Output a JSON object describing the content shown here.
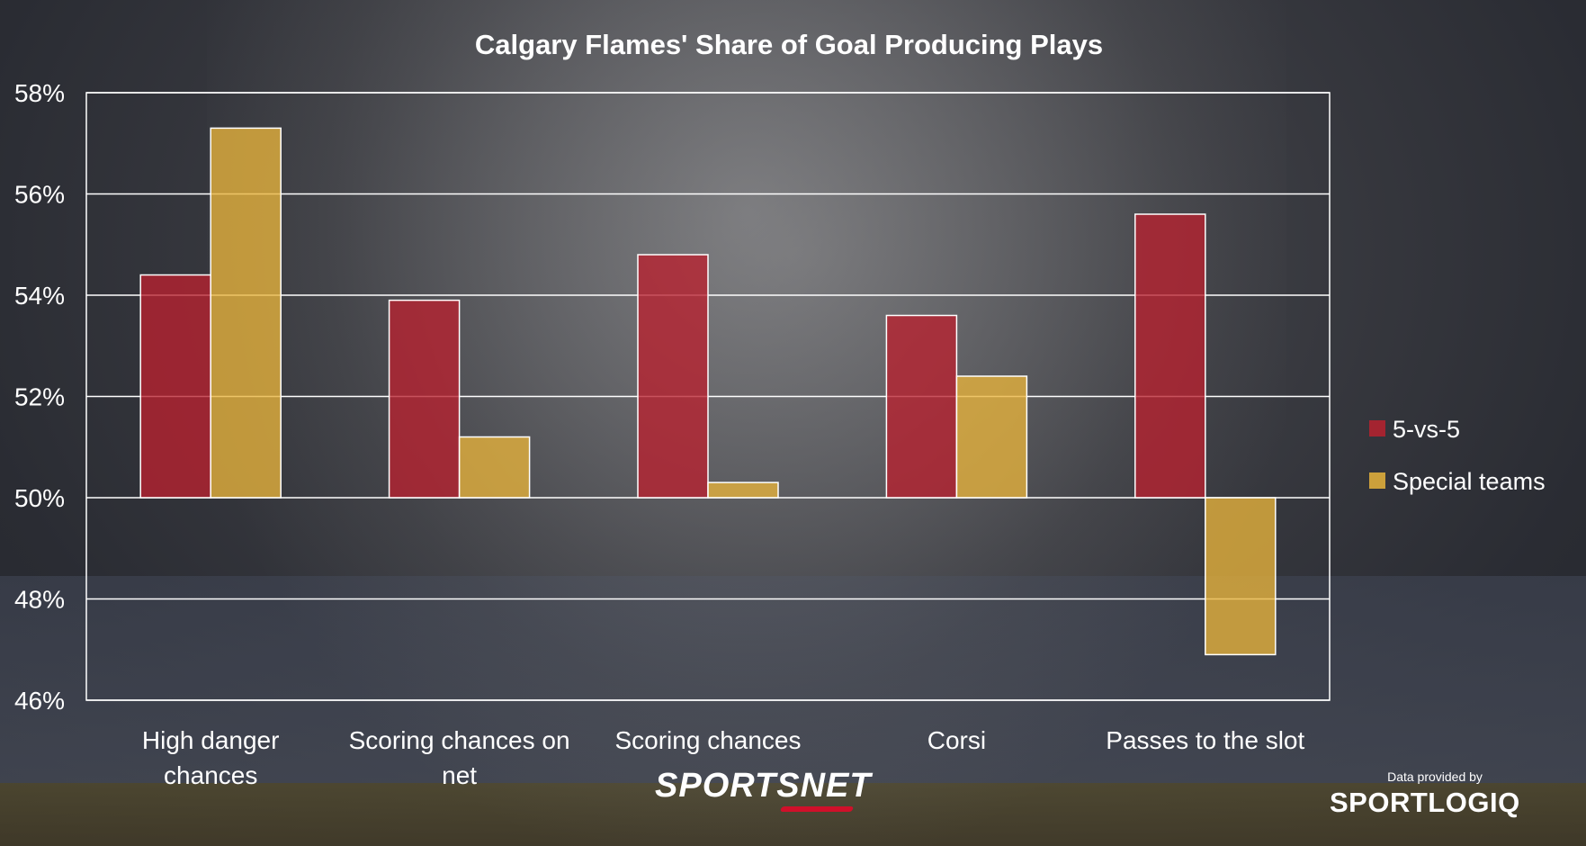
{
  "chart_data": {
    "type": "bar",
    "title": "Calgary Flames' Share of Goal Producing Plays",
    "categories": [
      [
        "High danger",
        "chances"
      ],
      [
        "Scoring chances on",
        "net"
      ],
      [
        "Scoring chances"
      ],
      [
        "Corsi"
      ],
      [
        "Passes to the slot"
      ]
    ],
    "series": [
      {
        "name": "5-vs-5",
        "color": "#b8212f",
        "values": [
          54.4,
          53.9,
          54.8,
          53.6,
          55.6
        ]
      },
      {
        "name": "Special teams",
        "color": "#e8b43c",
        "values": [
          57.3,
          51.2,
          50.3,
          52.4,
          46.9
        ]
      }
    ],
    "baseline": 50,
    "ylim": [
      46,
      58
    ],
    "yticks": [
      "46%",
      "48%",
      "50%",
      "52%",
      "54%",
      "56%",
      "58%"
    ],
    "grid": true,
    "legend_position": "right"
  },
  "branding": {
    "network": "SPORTSNET",
    "credit": "Data provided by",
    "provider": "SPORTLOGIQ"
  }
}
